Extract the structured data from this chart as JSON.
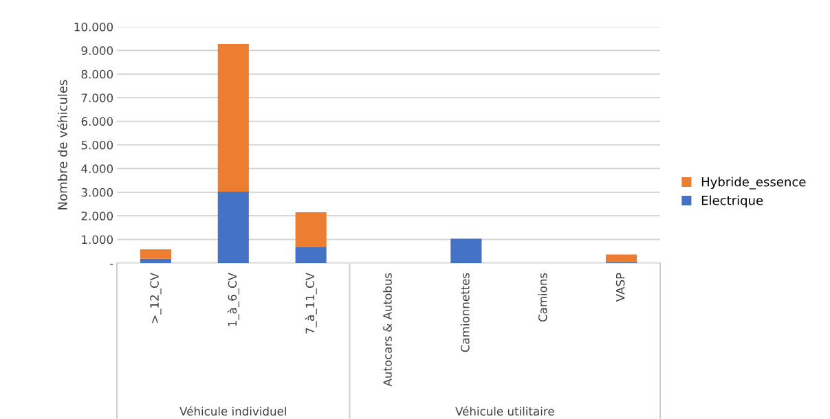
{
  "chart_data": {
    "type": "bar",
    "stacked": true,
    "ylabel": "Nombre de véhicules",
    "categories": [
      ">_12_CV",
      "1_à_6_CV",
      "7_à_11_CV",
      "Autocars & Autobus",
      "Camionnettes",
      "Camions",
      "VASP"
    ],
    "series": [
      {
        "name": "Electrique",
        "color": "#4472c4",
        "values": [
          180,
          3020,
          670,
          0,
          1030,
          0,
          30
        ]
      },
      {
        "name": "Hybride_essence",
        "color": "#ed7d31",
        "values": [
          400,
          6250,
          1480,
          0,
          0,
          0,
          330
        ]
      }
    ],
    "ylim": [
      0,
      10000
    ],
    "yticks": [
      {
        "value": 0,
        "label": "-"
      },
      {
        "value": 1000,
        "label": "1.000"
      },
      {
        "value": 2000,
        "label": "2.000"
      },
      {
        "value": 3000,
        "label": "3.000"
      },
      {
        "value": 4000,
        "label": "4.000"
      },
      {
        "value": 5000,
        "label": "5.000"
      },
      {
        "value": 6000,
        "label": "6.000"
      },
      {
        "value": 7000,
        "label": "7.000"
      },
      {
        "value": 8000,
        "label": "8.000"
      },
      {
        "value": 9000,
        "label": "9.000"
      },
      {
        "value": 10000,
        "label": "10.000"
      }
    ],
    "grid": "y",
    "legend": "right",
    "annotations": [
      "Véhicule individuel",
      "Véhicule utilitaire"
    ]
  }
}
